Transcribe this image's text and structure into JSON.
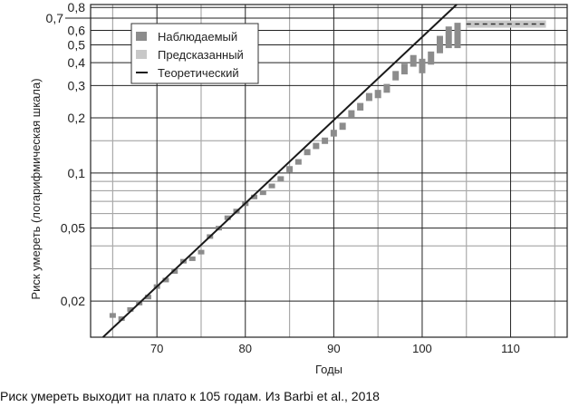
{
  "chart_data": {
    "type": "scatter",
    "xlabel": "Годы",
    "ylabel": "Риск умереть (логарифмическая шкала)",
    "xlim": [
      62.5,
      116.4
    ],
    "ylim": [
      0.0127,
      0.83
    ],
    "yscale": "log",
    "grid": true,
    "legend_placement": "top-left",
    "x_ticks": [
      {
        "v": 70,
        "label": "70"
      },
      {
        "v": 80,
        "label": "80"
      },
      {
        "v": 90,
        "label": "90"
      },
      {
        "v": 100,
        "label": "100"
      },
      {
        "v": 110,
        "label": "110"
      }
    ],
    "y_ticks": [
      {
        "v": 0.02,
        "label": "0,02"
      },
      {
        "v": 0.05,
        "label": "0,05"
      },
      {
        "v": 0.1,
        "label": "0,1"
      },
      {
        "v": 0.2,
        "label": "0,2"
      },
      {
        "v": 0.3,
        "label": "0,3"
      },
      {
        "v": 0.4,
        "label": "0,4"
      },
      {
        "v": 0.5,
        "label": "0,5"
      },
      {
        "v": 0.6,
        "label": "0,6"
      },
      {
        "v": 0.7,
        "label": "0,7"
      },
      {
        "v": 0.8,
        "label": "0,8"
      }
    ],
    "legend": [
      {
        "name": "Наблюдаемый",
        "color": "#8c8c8c",
        "kind": "box"
      },
      {
        "name": "Предсказанный",
        "color": "#c8c8c8",
        "kind": "box"
      },
      {
        "name": "Теоретический",
        "color": "#1a1a1a",
        "kind": "line"
      }
    ],
    "series": [
      {
        "name": "Наблюдаемый",
        "color": "#8c8c8c",
        "points": [
          [
            65,
            0.0167,
            0.0162,
            0.0172
          ],
          [
            66,
            0.016,
            0.0156,
            0.0165
          ],
          [
            67,
            0.018,
            0.0175,
            0.0185
          ],
          [
            68,
            0.0195,
            0.019,
            0.02
          ],
          [
            69,
            0.021,
            0.0205,
            0.0216
          ],
          [
            70,
            0.024,
            0.0234,
            0.0246
          ],
          [
            71,
            0.026,
            0.0254,
            0.0267
          ],
          [
            72,
            0.029,
            0.0283,
            0.0297
          ],
          [
            73,
            0.033,
            0.0322,
            0.0338
          ],
          [
            74,
            0.034,
            0.0332,
            0.0349
          ],
          [
            75,
            0.037,
            0.036,
            0.038
          ],
          [
            76,
            0.045,
            0.0438,
            0.0462
          ],
          [
            77,
            0.05,
            0.0487,
            0.0513
          ],
          [
            78,
            0.057,
            0.0555,
            0.0585
          ],
          [
            79,
            0.062,
            0.0603,
            0.0637
          ],
          [
            80,
            0.068,
            0.066,
            0.07
          ],
          [
            81,
            0.074,
            0.072,
            0.076
          ],
          [
            82,
            0.078,
            0.076,
            0.08
          ],
          [
            83,
            0.085,
            0.0825,
            0.0875
          ],
          [
            84,
            0.093,
            0.09,
            0.096
          ],
          [
            85,
            0.105,
            0.101,
            0.109
          ],
          [
            86,
            0.115,
            0.111,
            0.119
          ],
          [
            87,
            0.13,
            0.125,
            0.135
          ],
          [
            88,
            0.14,
            0.135,
            0.146
          ],
          [
            89,
            0.15,
            0.144,
            0.156
          ],
          [
            90,
            0.165,
            0.158,
            0.172
          ],
          [
            91,
            0.18,
            0.172,
            0.188
          ],
          [
            92,
            0.21,
            0.2,
            0.22
          ],
          [
            93,
            0.23,
            0.219,
            0.241
          ],
          [
            94,
            0.26,
            0.247,
            0.273
          ],
          [
            95,
            0.27,
            0.256,
            0.284
          ],
          [
            96,
            0.29,
            0.274,
            0.306
          ],
          [
            97,
            0.34,
            0.32,
            0.36
          ],
          [
            98,
            0.37,
            0.345,
            0.395
          ],
          [
            99,
            0.41,
            0.38,
            0.44
          ],
          [
            100,
            0.38,
            0.35,
            0.42
          ],
          [
            101,
            0.42,
            0.39,
            0.46
          ],
          [
            102,
            0.5,
            0.45,
            0.56
          ],
          [
            103,
            0.55,
            0.48,
            0.63
          ],
          [
            104,
            0.56,
            0.48,
            0.66
          ]
        ]
      },
      {
        "name": "Предсказанный",
        "color": "#c8c8c8",
        "x_range": [
          105,
          114
        ],
        "value": 0.65,
        "band": [
          0.62,
          0.68
        ]
      },
      {
        "name": "Теоретический",
        "color": "#1a1a1a",
        "line": [
          [
            63.9,
            0.0127
          ],
          [
            103.9,
            0.83
          ]
        ]
      }
    ]
  },
  "caption": "Риск умереть выходит на плато к 105 годам. Из Barbi et al., 2018"
}
